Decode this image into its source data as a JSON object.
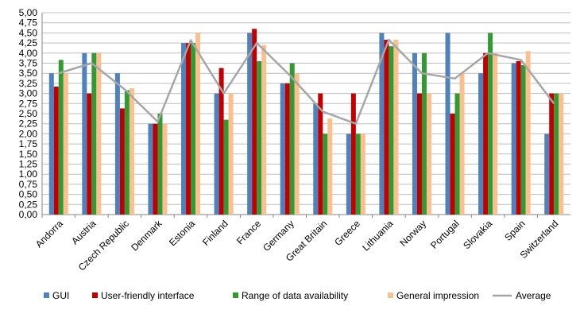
{
  "chart_data": {
    "type": "bar",
    "categories": [
      "Andorra",
      "Austria",
      "Czech Republic",
      "Denmark",
      "Estonia",
      "Finland",
      "France",
      "Germany",
      "Great Britain",
      "Greece",
      "Lithuania",
      "Norway",
      "Portugal",
      "Slovakia",
      "Spain",
      "Switzerland"
    ],
    "series": [
      {
        "name": "GUI",
        "kind": "bar",
        "color": "#4F81BD",
        "values": [
          3.5,
          4.0,
          3.5,
          2.25,
          4.25,
          3.0,
          4.5,
          3.25,
          2.75,
          2.0,
          4.5,
          4.0,
          4.5,
          3.5,
          3.75,
          2.0
        ]
      },
      {
        "name": "User-friendly interface",
        "kind": "bar",
        "color": "#C00000",
        "values": [
          3.17,
          3.0,
          2.63,
          2.25,
          4.25,
          3.63,
          4.6,
          3.25,
          3.0,
          3.0,
          4.33,
          3.0,
          2.5,
          4.0,
          3.8,
          3.0
        ]
      },
      {
        "name": "Range of data availability",
        "kind": "bar",
        "color": "#339933",
        "values": [
          3.83,
          4.0,
          3.08,
          2.5,
          4.25,
          2.35,
          3.8,
          3.75,
          2.0,
          2.0,
          4.17,
          4.0,
          3.0,
          4.5,
          3.7,
          3.0
        ]
      },
      {
        "name": "General impression",
        "kind": "bar",
        "color": "#FAC090",
        "values": [
          3.5,
          4.0,
          3.13,
          2.25,
          4.5,
          3.0,
          4.2,
          3.5,
          2.38,
          2.0,
          4.33,
          3.0,
          3.5,
          4.0,
          4.05,
          3.0
        ]
      },
      {
        "name": "Average",
        "kind": "line",
        "color": "#A6A6A6",
        "values": [
          3.5,
          3.75,
          3.1,
          2.3,
          4.32,
          3.0,
          4.25,
          3.45,
          2.55,
          2.25,
          4.33,
          3.5,
          3.37,
          4.0,
          3.83,
          2.75
        ]
      }
    ],
    "ylim": [
      0,
      5
    ],
    "ystep": 0.25,
    "yticks": [
      "0,00",
      "0,25",
      "0,50",
      "0,75",
      "1,00",
      "1,25",
      "1,50",
      "1,75",
      "2,00",
      "2,25",
      "2,50",
      "2,75",
      "3,00",
      "3,25",
      "3,50",
      "3,75",
      "4,00",
      "4,25",
      "4,50",
      "4,75",
      "5,00"
    ],
    "grid": true,
    "legend_position": "bottom",
    "title": "",
    "xlabel": "",
    "ylabel": ""
  }
}
